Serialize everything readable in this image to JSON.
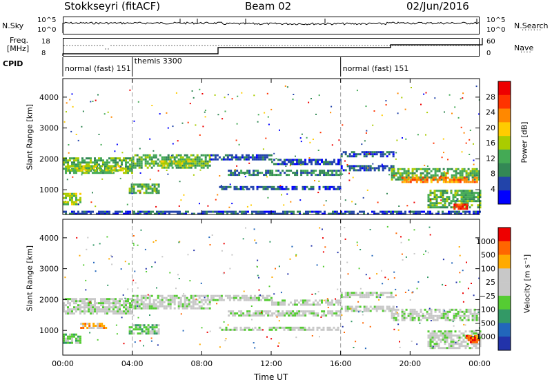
{
  "header": {
    "station": "Stokkseyri (fitACF)",
    "beam": "Beam 02",
    "date": "02/Jun/2016"
  },
  "strip_labels": {
    "nsky": "N.Sky",
    "nsearch": "N.Search",
    "freq": "Freq.",
    "freq_unit": "[MHz]",
    "nave": "Nave",
    "cpid": "CPID",
    "nsky_top": "10^5",
    "nsky_bottom": "10^0",
    "nsearch_top": "10^5",
    "nsearch_bottom": "10^0",
    "freq_top": "18",
    "freq_bottom": "8",
    "nave_top": "60",
    "nave_bottom": "0"
  },
  "cpid_segments": [
    {
      "label": "normal (fast)",
      "id": "151",
      "start_hour": 0
    },
    {
      "label": "themis",
      "id": "3300",
      "start_hour": 4
    },
    {
      "label": "normal (fast)",
      "id": "151",
      "start_hour": 16
    }
  ],
  "colors": {
    "power": [
      "#0000ff",
      "#2244aa",
      "#338855",
      "#44aa55",
      "#aacc00",
      "#ffcc00",
      "#ff8800",
      "#ff3300",
      "#ee0000"
    ],
    "velocity": [
      "#2233aa",
      "#2266bb",
      "#339966",
      "#55cc33",
      "#c8c8c8",
      "#c8c8c8",
      "#ffaa00",
      "#ff6600",
      "#ee0000"
    ]
  },
  "chart_data": [
    {
      "type": "heatmap",
      "ylabel": "Slant Range [km]",
      "ylim": [
        200,
        4600
      ],
      "yticks": [
        "1000",
        "2000",
        "3000",
        "4000"
      ],
      "xlim": [
        0,
        24
      ],
      "xticks": [
        "00:00",
        "04:00",
        "08:00",
        "12:00",
        "16:00",
        "20:00",
        "00:00"
      ],
      "colorbar": {
        "label": "Power [dB]",
        "ticks": [
          "4",
          "8",
          "12",
          "16",
          "20",
          "24",
          "28"
        ]
      },
      "bands": [
        {
          "x0": 0.0,
          "x1": 4.0,
          "y0": 1550,
          "y1": 2050,
          "level": 3
        },
        {
          "x0": 0.3,
          "x1": 3.5,
          "y0": 1600,
          "y1": 1800,
          "level": 4
        },
        {
          "x0": 4.0,
          "x1": 8.5,
          "y0": 1700,
          "y1": 2150,
          "level": 3
        },
        {
          "x0": 5.5,
          "x1": 7.5,
          "y0": 1750,
          "y1": 1950,
          "level": 4
        },
        {
          "x0": 8.5,
          "x1": 12.0,
          "y0": 1950,
          "y1": 2150,
          "level": 1
        },
        {
          "x0": 9.5,
          "x1": 16.0,
          "y0": 1500,
          "y1": 1650,
          "level": 2
        },
        {
          "x0": 9.0,
          "x1": 16.0,
          "y0": 1020,
          "y1": 1120,
          "level": 1
        },
        {
          "x0": 12.0,
          "x1": 16.0,
          "y0": 1850,
          "y1": 2000,
          "level": 1
        },
        {
          "x0": 16.0,
          "x1": 19.0,
          "y0": 1600,
          "y1": 1800,
          "level": 1
        },
        {
          "x0": 16.0,
          "x1": 19.0,
          "y0": 2050,
          "y1": 2250,
          "level": 1
        },
        {
          "x0": 18.9,
          "x1": 24.0,
          "y0": 1300,
          "y1": 1700,
          "level": 3
        },
        {
          "x0": 19.5,
          "x1": 23.8,
          "y0": 1280,
          "y1": 1420,
          "level": 6
        },
        {
          "x0": 21.0,
          "x1": 24.0,
          "y0": 450,
          "y1": 1000,
          "level": 3
        },
        {
          "x0": 22.5,
          "x1": 23.3,
          "y0": 350,
          "y1": 550,
          "level": 7
        },
        {
          "x0": 0.0,
          "x1": 1.0,
          "y0": 550,
          "y1": 900,
          "level": 4
        },
        {
          "x0": 3.8,
          "x1": 5.5,
          "y0": 900,
          "y1": 1200,
          "level": 3
        },
        {
          "x0": 0.0,
          "x1": 24.0,
          "y0": 230,
          "y1": 320,
          "level": 1
        }
      ]
    },
    {
      "type": "heatmap",
      "ylabel": "Slant Range [km]",
      "xlabel": "Time UT",
      "ylim": [
        200,
        4600
      ],
      "yticks": [
        "1000",
        "2000",
        "3000",
        "4000"
      ],
      "xlim": [
        0,
        24
      ],
      "xticks": [
        "00:00",
        "04:00",
        "08:00",
        "12:00",
        "16:00",
        "20:00",
        "00:00"
      ],
      "colorbar": {
        "label": "Velocity [m s⁻¹]",
        "ticks": [
          "1000",
          "500",
          "100",
          "25",
          "−25",
          "−100",
          "−500",
          "−1000"
        ]
      },
      "bands": [
        {
          "x0": 0.0,
          "x1": 4.0,
          "y0": 1550,
          "y1": 2050,
          "level": 4
        },
        {
          "x0": 4.0,
          "x1": 8.5,
          "y0": 1700,
          "y1": 2150,
          "level": 4
        },
        {
          "x0": 8.5,
          "x1": 12.0,
          "y0": 1950,
          "y1": 2150,
          "level": 4
        },
        {
          "x0": 9.5,
          "x1": 16.0,
          "y0": 1500,
          "y1": 1650,
          "level": 4
        },
        {
          "x0": 9.0,
          "x1": 16.0,
          "y0": 1020,
          "y1": 1120,
          "level": 4
        },
        {
          "x0": 12.0,
          "x1": 16.0,
          "y0": 1850,
          "y1": 2000,
          "level": 4
        },
        {
          "x0": 16.0,
          "x1": 19.0,
          "y0": 1600,
          "y1": 1800,
          "level": 4
        },
        {
          "x0": 16.0,
          "x1": 19.0,
          "y0": 2050,
          "y1": 2250,
          "level": 4
        },
        {
          "x0": 18.9,
          "x1": 24.0,
          "y0": 1300,
          "y1": 1700,
          "level": 4
        },
        {
          "x0": 21.0,
          "x1": 24.0,
          "y0": 450,
          "y1": 1000,
          "level": 4
        },
        {
          "x0": 23.2,
          "x1": 24.0,
          "y0": 600,
          "y1": 850,
          "level": 7
        },
        {
          "x0": 1.0,
          "x1": 2.5,
          "y0": 1050,
          "y1": 1250,
          "level": 6
        },
        {
          "x0": 0.0,
          "x1": 1.0,
          "y0": 600,
          "y1": 900,
          "level": 3
        },
        {
          "x0": 3.8,
          "x1": 5.5,
          "y0": 900,
          "y1": 1200,
          "level": 3
        }
      ]
    }
  ]
}
